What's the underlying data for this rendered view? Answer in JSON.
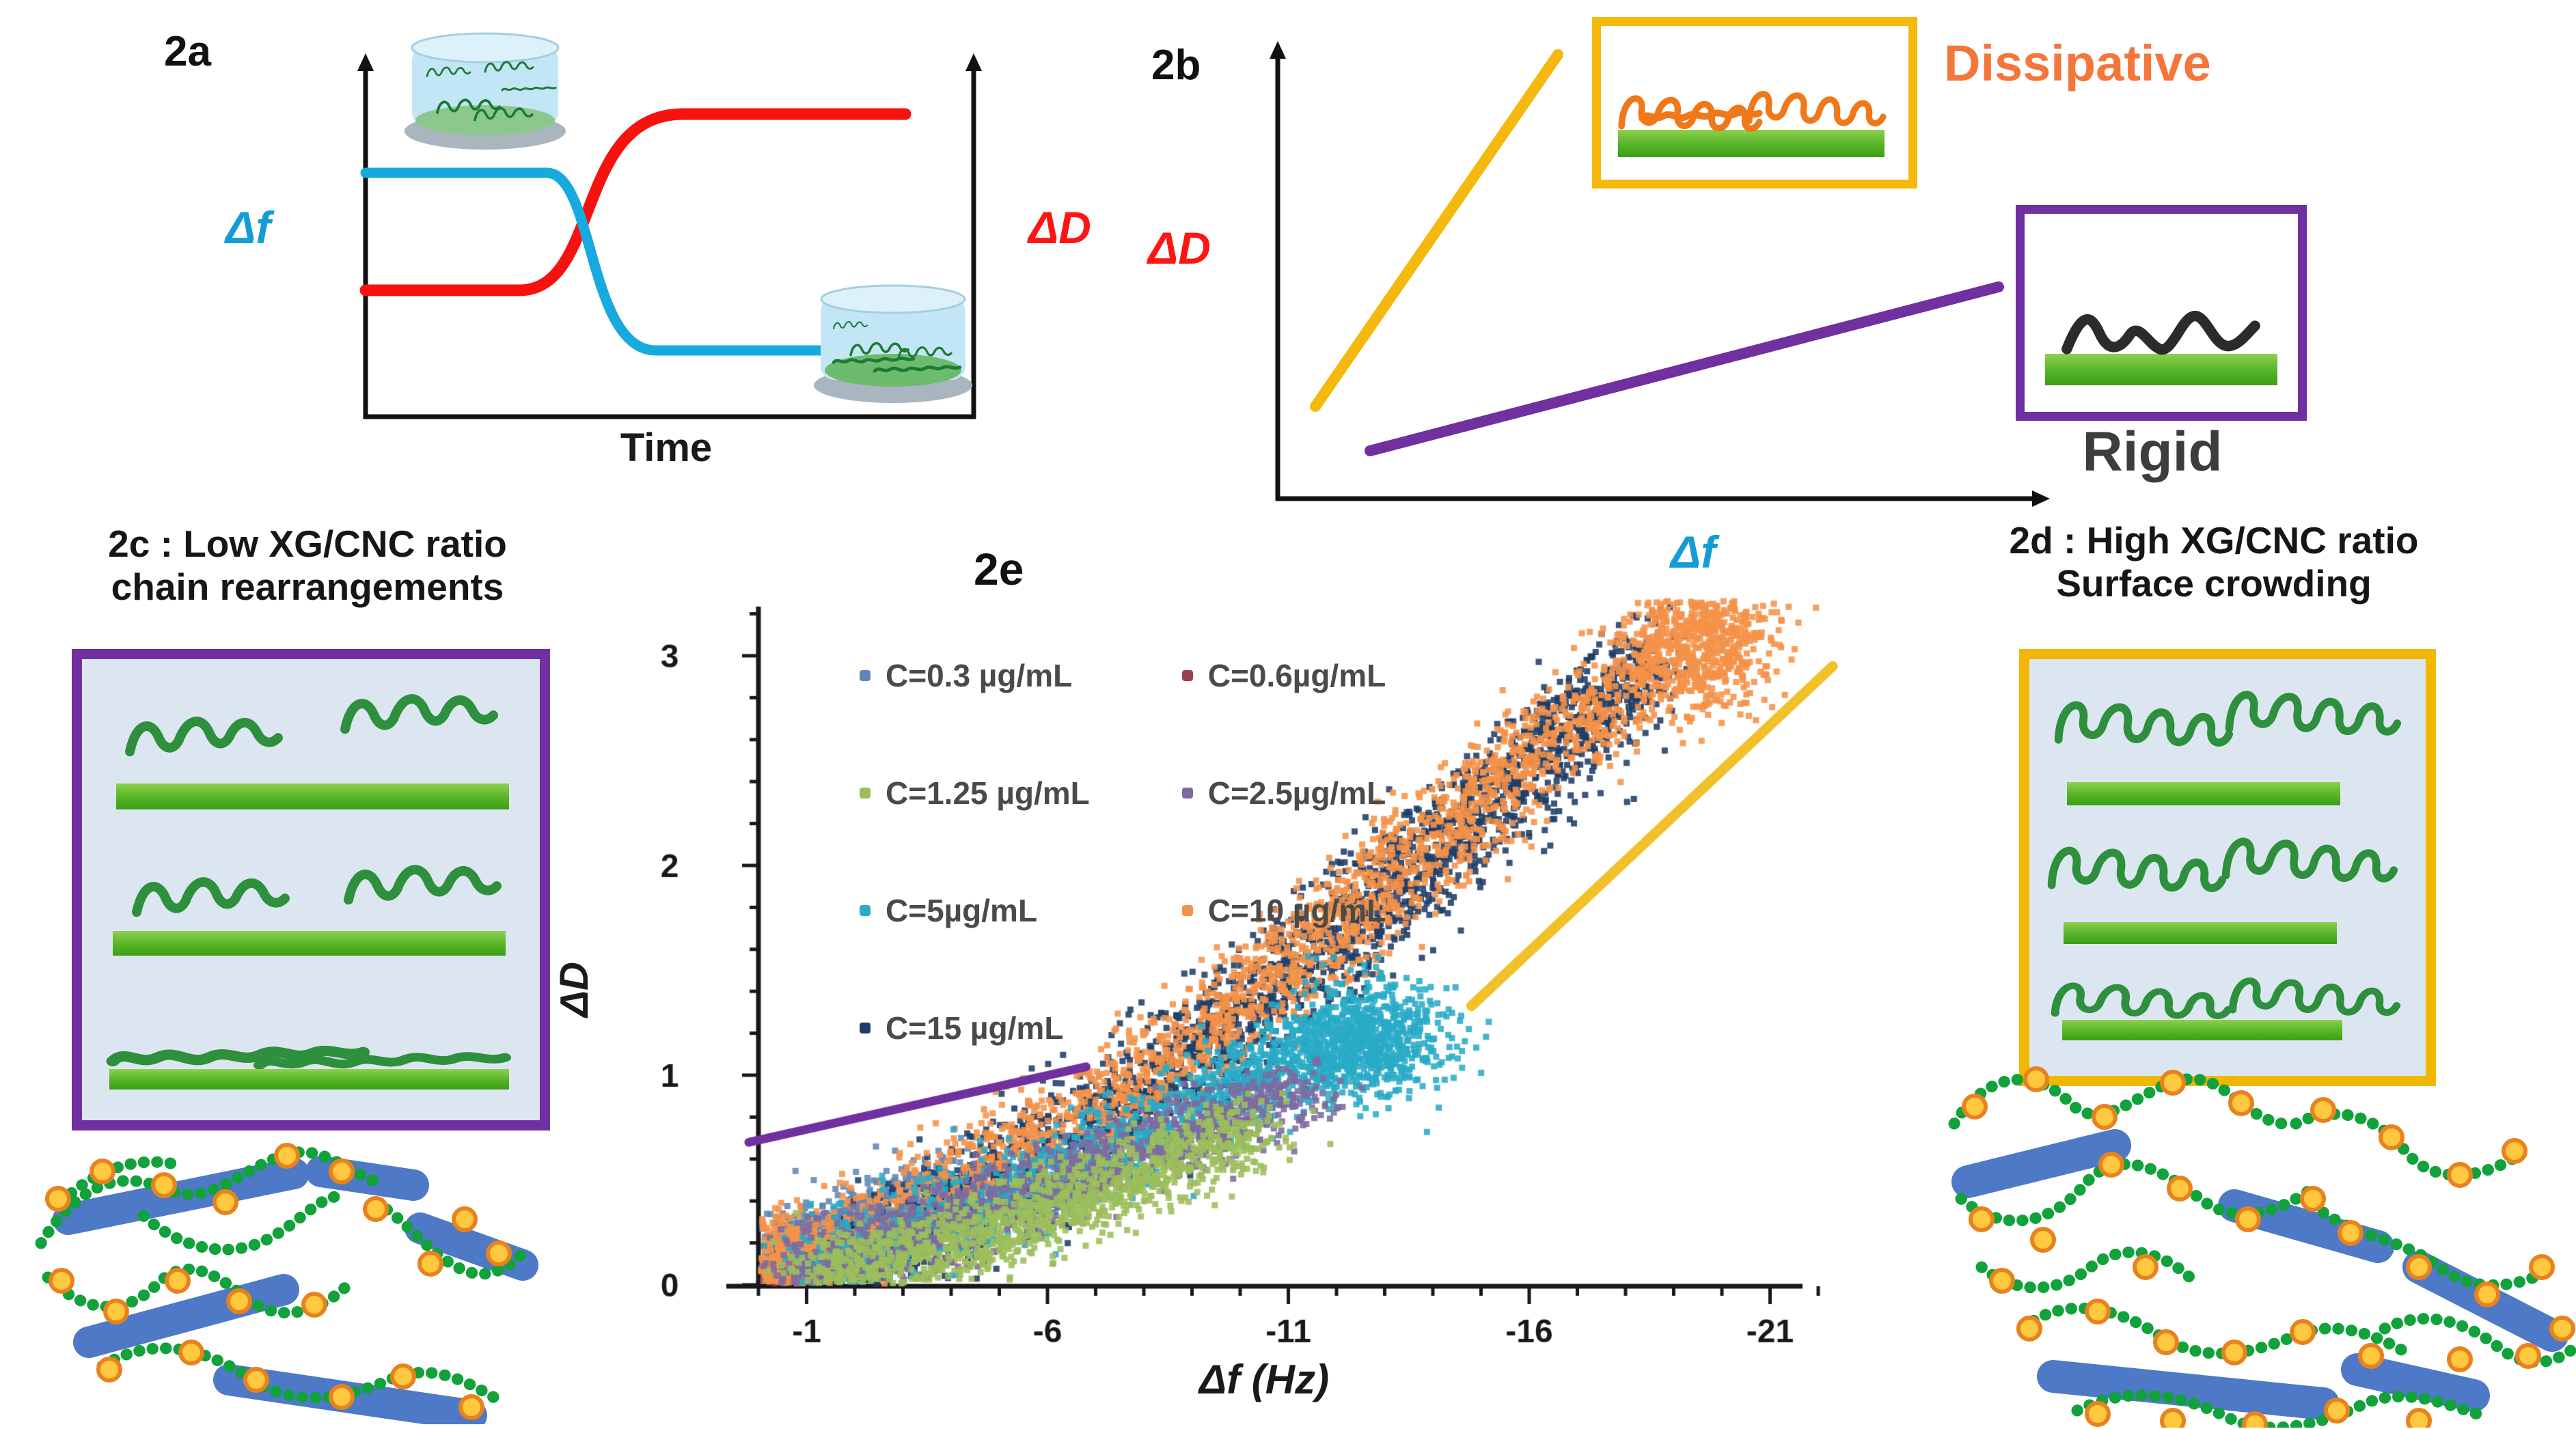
{
  "figure": {
    "panel_a": {
      "label": "2a",
      "left_axis_label": "Δf",
      "right_axis_label": "ΔD",
      "x_axis_label": "Time",
      "curve_colors": {
        "delta_f": "#17AADF",
        "delta_d": "#F5120F"
      },
      "icons": [
        "petri-dish-sparse",
        "petri-dish-dense"
      ]
    },
    "panel_b": {
      "label": "2b",
      "y_axis_label": "ΔD",
      "x_axis_label": "Δf",
      "dissipative_label": "Dissipative",
      "rigid_label": "Rigid",
      "dissipative_line_color": "#F5B80C",
      "rigid_line_color": "#7030A0",
      "dissipative_box_border": "#F5B80C",
      "rigid_box_border": "#7030A0"
    },
    "panel_c": {
      "title_line1": "2c : Low XG/CNC ratio",
      "title_line2": "chain rearrangements",
      "box_border_color": "#7030A0",
      "box_fill_color": "#DCE6F1"
    },
    "panel_d": {
      "title_line1": "2d : High XG/CNC ratio",
      "title_line2": "Surface crowding",
      "box_border_color": "#F2B705",
      "box_fill_color": "#DCE6F1"
    },
    "panel_e": {
      "label": "2e"
    }
  },
  "chart_data": {
    "type": "scatter",
    "xlabel": "Δf (Hz)",
    "ylabel": "ΔD",
    "x_ticks": [
      -1,
      -6,
      -11,
      -16,
      -21
    ],
    "y_ticks": [
      0,
      1,
      2,
      3
    ],
    "x_minor_step": 1,
    "y_minor_step": 0.2,
    "xlim": [
      0.5,
      -22.5
    ],
    "ylim": [
      0,
      3.3
    ],
    "x_axis_reversed": true,
    "grid": false,
    "legend_position": "upper-left-inside",
    "legend": [
      {
        "label": "C=0.3 µg/mL",
        "color": "#5E87B5"
      },
      {
        "label": "C=0.6µg/mL",
        "color": "#9C3F50"
      },
      {
        "label": "C=1.25 µg/mL",
        "color": "#9CBE5B"
      },
      {
        "label": "C=2.5µg/mL",
        "color": "#7D6BA0"
      },
      {
        "label": "C=5µg/mL",
        "color": "#29ABC7"
      },
      {
        "label": "C=10 µg/mL",
        "color": "#F59249"
      },
      {
        "label": "C=15 µg/mL",
        "color": "#1F3D68"
      }
    ],
    "series": [
      {
        "name": "C=0.6µg/mL",
        "color": "#9C3F50",
        "count": 450,
        "jitter": [
          0.35,
          0.07
        ],
        "path": [
          [
            0.2,
            0.04
          ],
          [
            -0.9,
            0.1
          ],
          [
            -1.8,
            0.18
          ],
          [
            -2.6,
            0.26
          ]
        ],
        "clusters": []
      },
      {
        "name": "C=0.3 µg/mL",
        "color": "#5E87B5",
        "count": 950,
        "jitter": [
          0.45,
          0.09
        ],
        "path": [
          [
            0.2,
            0.06
          ],
          [
            -1,
            0.17
          ],
          [
            -2,
            0.28
          ],
          [
            -3,
            0.37
          ],
          [
            -4.2,
            0.46
          ]
        ],
        "clusters": []
      },
      {
        "name": "C=15 µg/mL",
        "color": "#1F3D68",
        "count": 2600,
        "jitter": [
          0.55,
          0.13
        ],
        "path": [
          [
            -2,
            0.1
          ],
          [
            -4,
            0.36
          ],
          [
            -6,
            0.62
          ],
          [
            -8,
            0.92
          ],
          [
            -10,
            1.26
          ],
          [
            -12,
            1.66
          ],
          [
            -14,
            2.06
          ],
          [
            -16,
            2.46
          ],
          [
            -17.6,
            2.78
          ],
          [
            -18.6,
            2.98
          ]
        ],
        "clusters": []
      },
      {
        "name": "C=10 µg/mL",
        "color": "#F59249",
        "count": 2300,
        "jitter": [
          0.5,
          0.12
        ],
        "path": [
          [
            0,
            0.05
          ],
          [
            -2,
            0.22
          ],
          [
            -4,
            0.45
          ],
          [
            -6,
            0.7
          ],
          [
            -8,
            0.98
          ],
          [
            -10,
            1.32
          ],
          [
            -12,
            1.72
          ],
          [
            -14,
            2.12
          ],
          [
            -16,
            2.52
          ],
          [
            -18,
            2.88
          ],
          [
            -18.9,
            3.0
          ]
        ],
        "clusters": [
          {
            "x": -19.6,
            "y": 3.08,
            "sx": 0.7,
            "sy": 0.17,
            "n": 700
          },
          {
            "x": -0.6,
            "y": 0.12,
            "sx": 0.45,
            "sy": 0.1,
            "n": 350
          }
        ]
      },
      {
        "name": "C=5µg/mL",
        "color": "#29ABC7",
        "count": 1600,
        "jitter": [
          0.5,
          0.1
        ],
        "path": [
          [
            -1,
            0.06
          ],
          [
            -3,
            0.22
          ],
          [
            -5,
            0.4
          ],
          [
            -7,
            0.6
          ],
          [
            -9,
            0.82
          ],
          [
            -11,
            1.03
          ],
          [
            -12.5,
            1.18
          ]
        ],
        "clusters": [
          {
            "x": -12.7,
            "y": 1.17,
            "sx": 0.85,
            "sy": 0.14,
            "n": 700
          }
        ]
      },
      {
        "name": "C=2.5µg/mL",
        "color": "#7D6BA0",
        "count": 1200,
        "jitter": [
          0.5,
          0.09
        ],
        "path": [
          [
            -0.3,
            0.04
          ],
          [
            -2,
            0.14
          ],
          [
            -4,
            0.3
          ],
          [
            -6,
            0.47
          ],
          [
            -8,
            0.64
          ],
          [
            -10,
            0.82
          ],
          [
            -11.4,
            0.94
          ]
        ],
        "clusters": []
      },
      {
        "name": "C=1.25 µg/mL",
        "color": "#9CBE5B",
        "count": 1300,
        "jitter": [
          0.5,
          0.09
        ],
        "path": [
          [
            -1,
            0.03
          ],
          [
            -3,
            0.12
          ],
          [
            -5,
            0.26
          ],
          [
            -7,
            0.44
          ],
          [
            -9,
            0.62
          ],
          [
            -10.4,
            0.74
          ]
        ],
        "clusters": []
      }
    ],
    "trend_lines": [
      {
        "name": "rigid-guide-line",
        "color": "#7030A0",
        "width": 13,
        "from": [
          0.2,
          0.68
        ],
        "to": [
          -6.8,
          1.04
        ]
      },
      {
        "name": "dissipative-guide-line",
        "color": "#F2C029",
        "width": 15,
        "from": [
          -14.8,
          1.33
        ],
        "to": [
          -22.3,
          2.95
        ]
      }
    ]
  }
}
